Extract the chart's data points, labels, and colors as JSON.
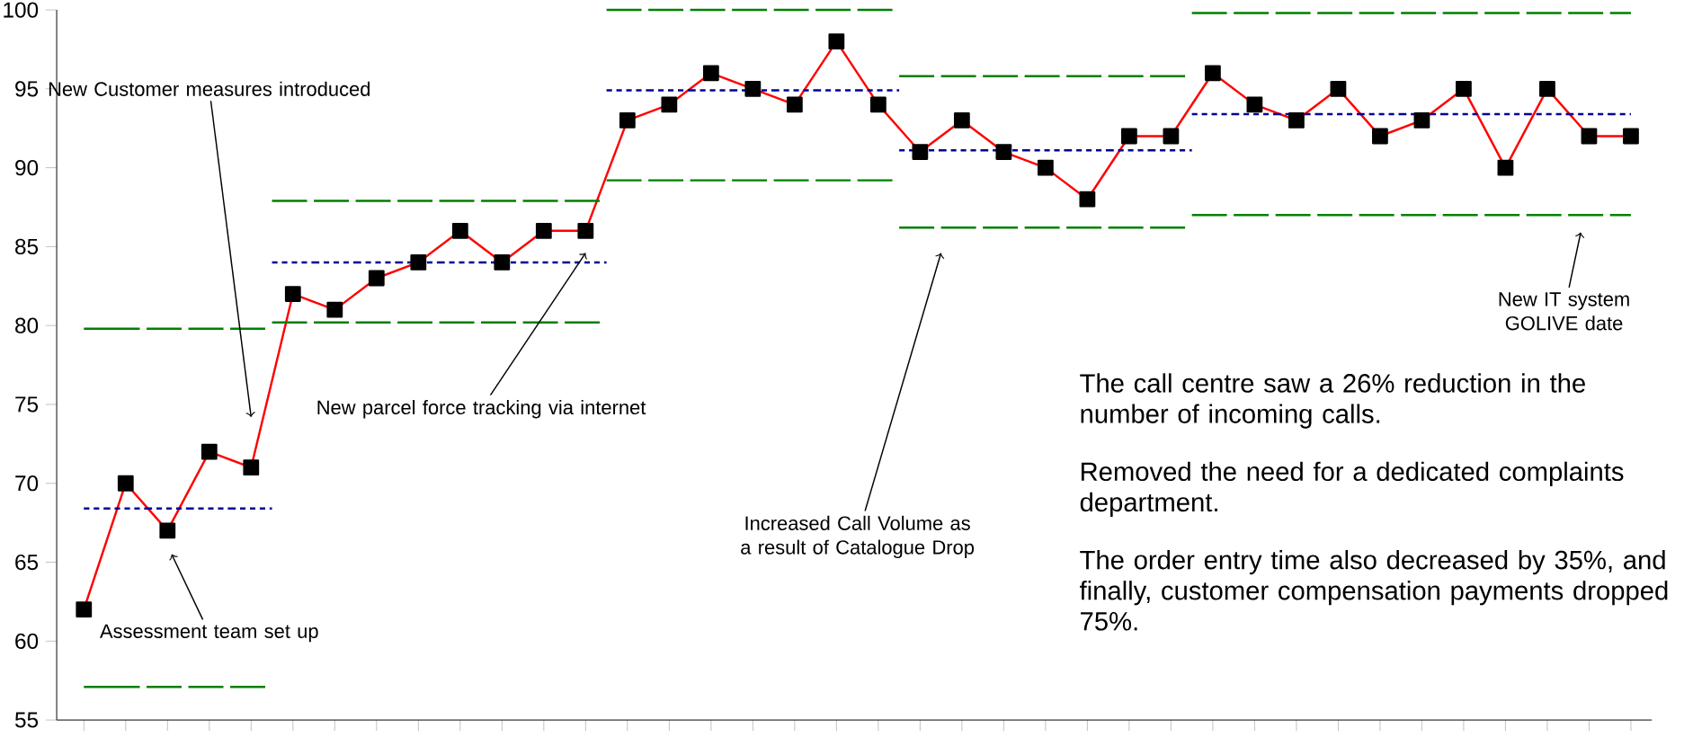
{
  "chart_data": {
    "type": "line",
    "marker": "square",
    "tick_labels": "y",
    "categories": [
      null,
      null,
      null,
      null,
      null,
      null,
      null,
      null,
      null,
      null,
      null,
      null,
      null,
      null,
      null,
      null,
      null,
      null,
      null,
      null,
      null,
      null,
      null,
      null,
      null,
      null,
      null,
      null,
      null,
      null,
      null,
      null,
      null,
      null,
      null,
      null,
      null,
      null
    ],
    "ylim": [
      55,
      100
    ],
    "yticks": [
      55,
      60,
      65,
      70,
      75,
      80,
      85,
      90,
      95,
      100
    ],
    "series": [
      {
        "color": "#ff0000",
        "values": [
          62,
          70,
          67,
          72,
          71,
          82,
          81,
          83,
          84,
          86,
          84,
          86,
          86,
          93,
          94,
          96,
          95,
          94,
          98,
          94,
          91,
          93,
          91,
          90,
          88,
          92,
          92,
          96,
          94,
          93,
          95,
          92,
          93,
          95,
          90,
          95,
          92,
          92
        ]
      },
      {
        "type": "step",
        "color": "#008000",
        "marker": "none",
        "line_style": "dashed",
        "values": [
          79.8,
          79.8,
          79.8,
          79.8,
          79.8,
          87.9,
          87.9,
          87.9,
          87.9,
          87.9,
          87.9,
          87.9,
          87.9,
          100.0,
          100.0,
          100.0,
          100.0,
          100.0,
          100.0,
          100.0,
          95.8,
          95.8,
          95.8,
          95.8,
          95.8,
          95.8,
          95.8,
          99.8,
          99.8,
          99.8,
          99.8,
          99.8,
          99.8,
          99.8,
          99.8,
          99.8,
          99.8,
          99.8
        ]
      },
      {
        "type": "step",
        "color": "#000099",
        "marker": "none",
        "line_style": "dotted",
        "values": [
          68.4,
          68.4,
          68.4,
          68.4,
          68.4,
          84.0,
          84.0,
          84.0,
          84.0,
          84.0,
          84.0,
          84.0,
          84.0,
          94.9,
          94.9,
          94.9,
          94.9,
          94.9,
          94.9,
          94.9,
          91.1,
          91.1,
          91.1,
          91.1,
          91.1,
          91.1,
          91.1,
          93.4,
          93.4,
          93.4,
          93.4,
          93.4,
          93.4,
          93.4,
          93.4,
          93.4,
          93.4,
          93.4
        ]
      },
      {
        "type": "step",
        "color": "#008000",
        "marker": "none",
        "line_style": "dashed",
        "values": [
          57.1,
          57.1,
          57.1,
          57.1,
          57.1,
          80.2,
          80.2,
          80.2,
          80.2,
          80.2,
          80.2,
          80.2,
          80.2,
          89.2,
          89.2,
          89.2,
          89.2,
          89.2,
          89.2,
          89.2,
          86.2,
          86.2,
          86.2,
          86.2,
          86.2,
          86.2,
          86.2,
          87.0,
          87.0,
          87.0,
          87.0,
          87.0,
          87.0,
          87.0,
          87.0,
          87.0,
          87.0,
          87.0
        ]
      }
    ],
    "annotations": [
      "New Customer measures introduced",
      "Assessment team set up",
      "New parcel force tracking via internet",
      "Increased Call Volume as a result of Catalogue Drop",
      "New IT system GOLIVE date",
      "The call centre saw a 26% reduction in the number of incoming calls.",
      "Removed the need for a dedicated complaints department.",
      "The order entry time also decreased by 35%, and finally, customer compensation payments dropped 75%."
    ]
  }
}
